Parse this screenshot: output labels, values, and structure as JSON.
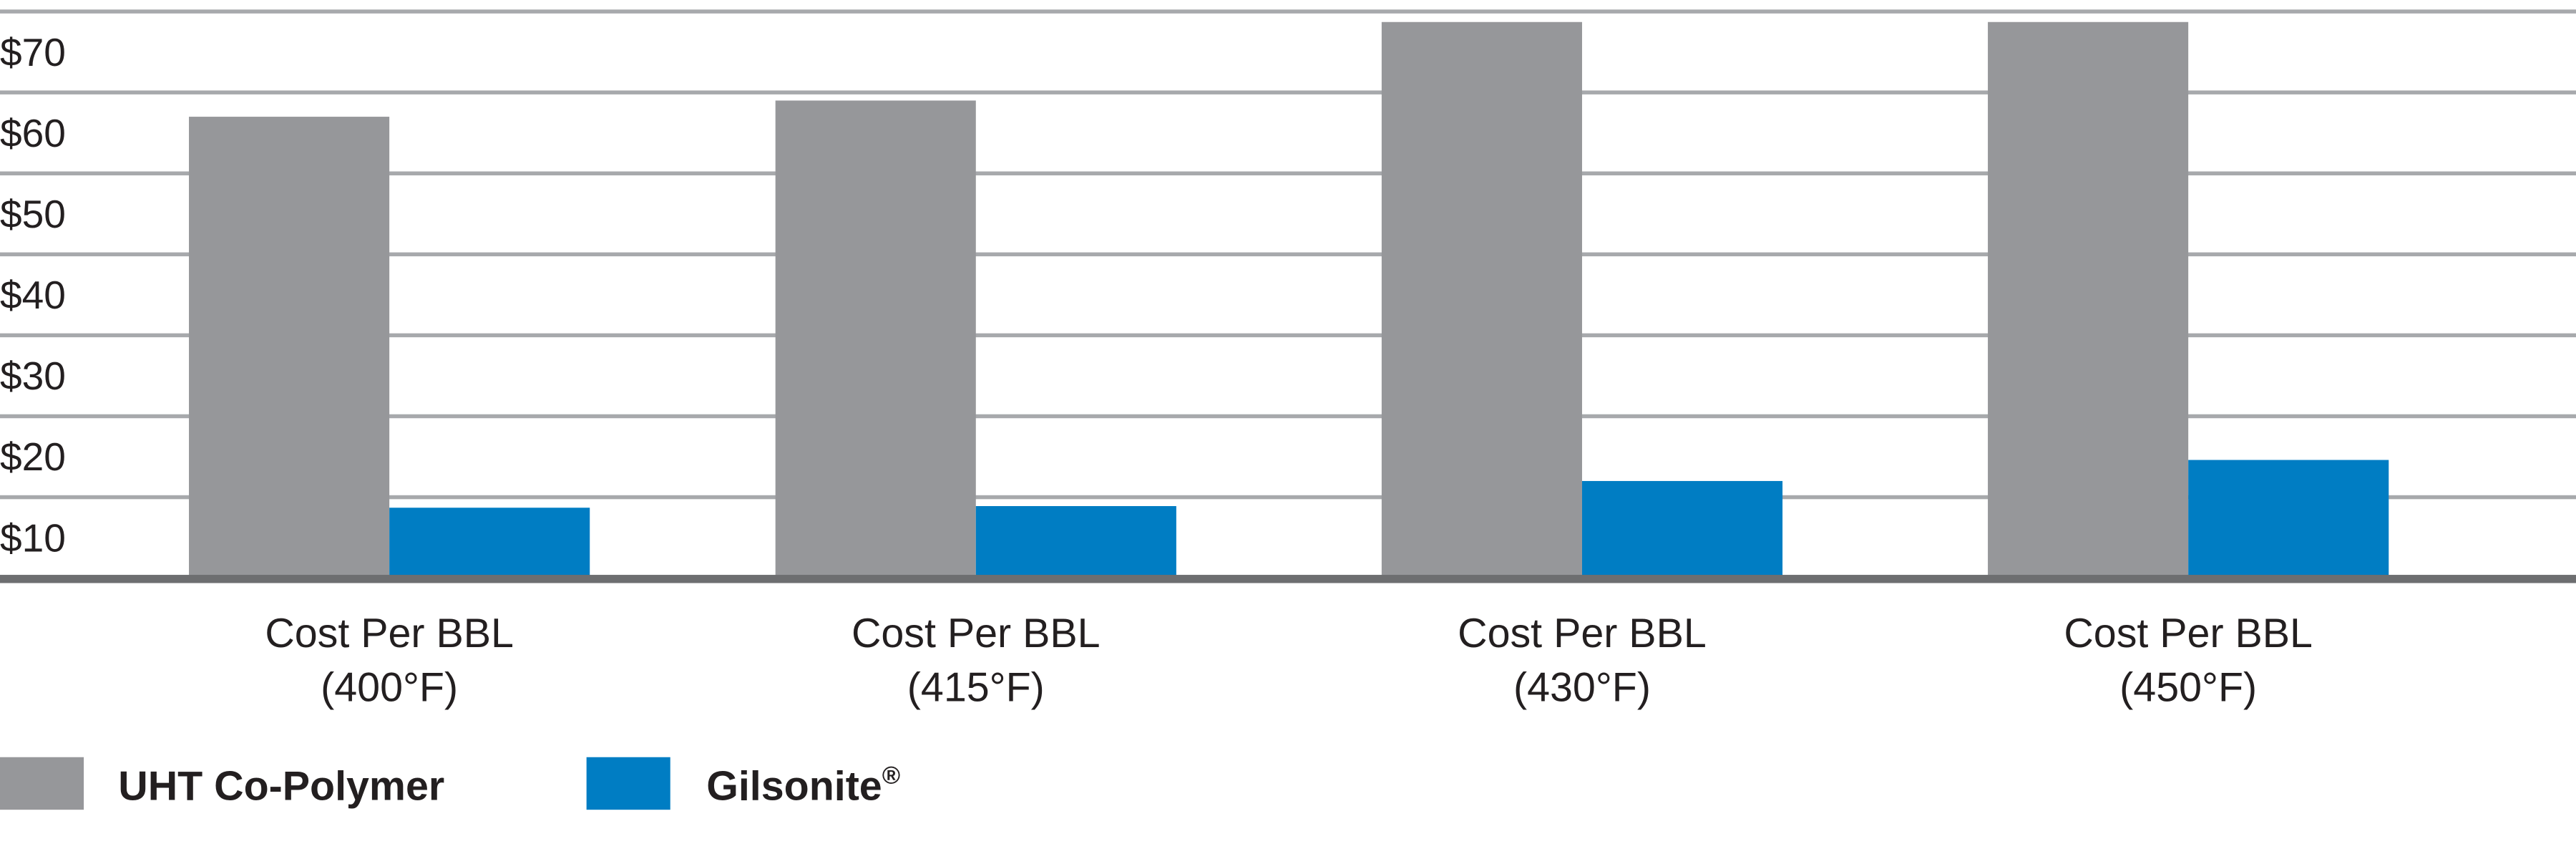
{
  "chart_data": {
    "type": "bar",
    "title": "",
    "xlabel": "",
    "ylabel": "",
    "categories": [
      [
        "Cost Per BBL",
        "(400°F)"
      ],
      [
        "Cost Per BBL",
        "(415°F)"
      ],
      [
        "Cost Per BBL",
        "(430°F)"
      ],
      [
        "Cost Per BBL",
        "(450°F)"
      ]
    ],
    "series": [
      {
        "name": "UHT Co-Polymer",
        "color": "#96979a",
        "values": [
          57,
          59,
          68.7,
          68.7
        ]
      },
      {
        "name": "Gilsonite",
        "superscript": "®",
        "color": "#007dc3",
        "values": [
          8.7,
          8.9,
          12,
          14.6
        ]
      }
    ],
    "yticks": [
      "$10",
      "$20",
      "$30",
      "$40",
      "$50",
      "$60",
      "$70"
    ],
    "ytick_values": [
      10,
      20,
      30,
      40,
      50,
      60,
      70
    ],
    "ylim": [
      0,
      70
    ],
    "grid": true,
    "legend_position": "bottom-left",
    "axis_color": "#6d6e70",
    "grid_color": "#a7a9ac"
  }
}
